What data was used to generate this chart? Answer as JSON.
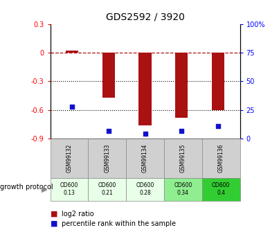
{
  "title": "GDS2592 / 3920",
  "samples": [
    "GSM99132",
    "GSM99133",
    "GSM99134",
    "GSM99135",
    "GSM99136"
  ],
  "log2_ratio": [
    0.02,
    -0.47,
    -0.76,
    -0.68,
    -0.6
  ],
  "percentile_rank": [
    28,
    7,
    4,
    7,
    11
  ],
  "growth_protocol_label": "growth protocol",
  "annotations": [
    "OD600\n0.13",
    "OD600\n0.21",
    "OD600\n0.28",
    "OD600\n0.34",
    "OD600\n0.4"
  ],
  "annotation_colors": [
    "#e8ffe8",
    "#e8ffe8",
    "#e8ffe8",
    "#90ee90",
    "#32cd32"
  ],
  "ylim_left": [
    -0.9,
    0.3
  ],
  "ylim_right": [
    0,
    100
  ],
  "yticks_left": [
    -0.9,
    -0.6,
    -0.3,
    0.0,
    0.3
  ],
  "ytick_labels_left": [
    "-0.9",
    "-0.6",
    "-0.3",
    "0",
    "0.3"
  ],
  "yticks_right": [
    0,
    25,
    50,
    75,
    100
  ],
  "ytick_labels_right": [
    "0",
    "25",
    "50",
    "75",
    "100%"
  ],
  "hline_y": 0.0,
  "dotted_lines": [
    -0.3,
    -0.6
  ],
  "bar_color": "#aa1111",
  "dot_color": "#1111cc",
  "bar_width": 0.35
}
